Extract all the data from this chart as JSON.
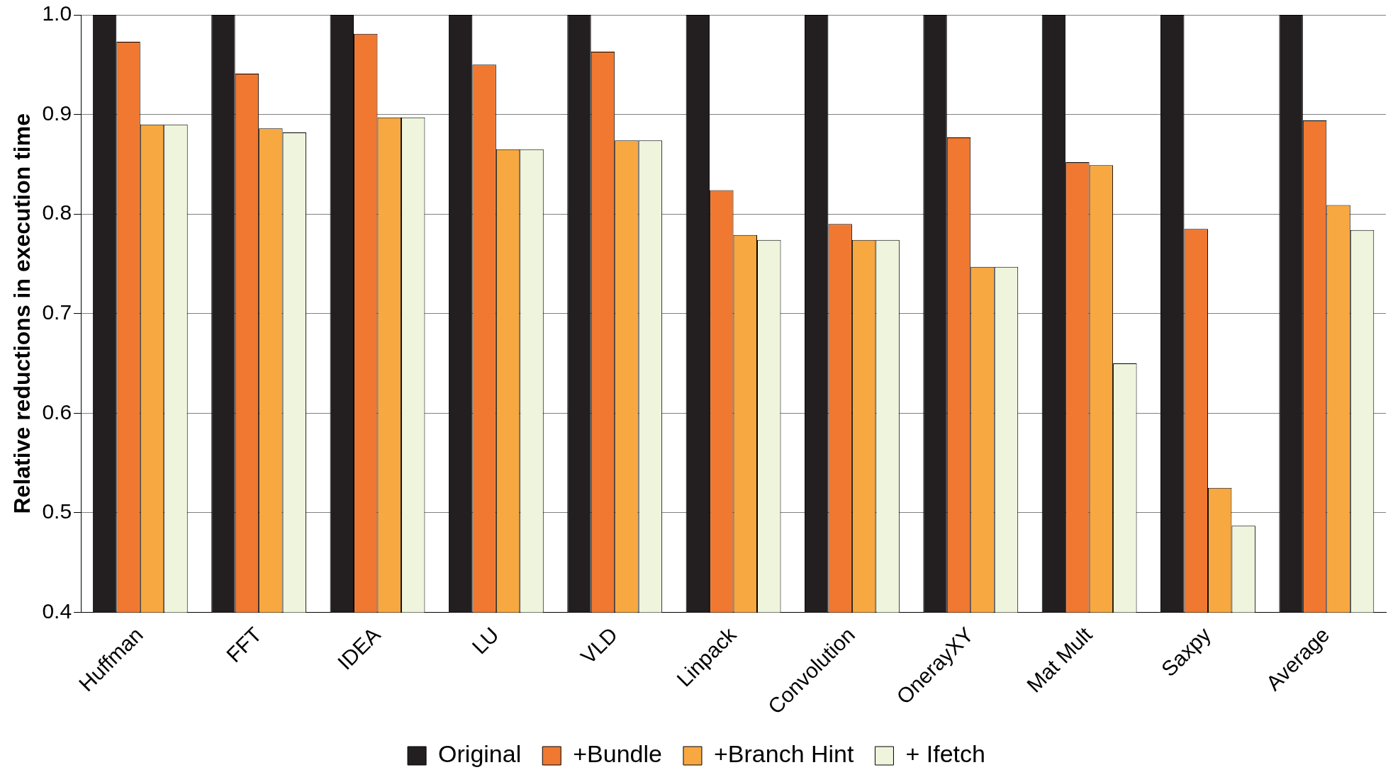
{
  "chart_data": {
    "type": "bar",
    "ylabel": "Relative reductions in execution time",
    "categories": [
      "Huffman",
      "FFT",
      "IDEA",
      "LU",
      "VLD",
      "Linpack",
      "Convolution",
      "OnerayXY",
      "Mat Mult",
      "Saxpy",
      "Average"
    ],
    "series": [
      {
        "name": "Original",
        "color": "#231f20",
        "values": [
          1,
          1,
          1,
          1,
          1,
          1,
          1,
          1,
          1,
          1,
          1
        ]
      },
      {
        "name": "+Bundle",
        "color": "#f07830",
        "values": [
          0.973,
          0.941,
          0.981,
          0.95,
          0.963,
          0.824,
          0.79,
          0.877,
          0.852,
          0.785,
          0.894
        ]
      },
      {
        "name": "+Branch Hint",
        "color": "#f8a840",
        "values": [
          0.89,
          0.886,
          0.897,
          0.865,
          0.874,
          0.779,
          0.774,
          0.747,
          0.849,
          0.525,
          0.809
        ]
      },
      {
        "name": "+ Ifetch",
        "color": "#eef5dc",
        "values": [
          0.89,
          0.882,
          0.897,
          0.865,
          0.874,
          0.774,
          0.774,
          0.747,
          0.65,
          0.487,
          0.784
        ]
      }
    ],
    "ylim": [
      0.4,
      1.0
    ],
    "yticks": [
      {
        "value": 0.4,
        "label": "0.4"
      },
      {
        "value": 0.5,
        "label": "0.5"
      },
      {
        "value": 0.6,
        "label": "0.6"
      },
      {
        "value": 0.7,
        "label": "0.7"
      },
      {
        "value": 0.8,
        "label": "0.8"
      },
      {
        "value": 0.9,
        "label": "0.9"
      },
      {
        "value": 1.0,
        "label": "1.0"
      }
    ],
    "grid": "y",
    "legend": "bottom"
  }
}
